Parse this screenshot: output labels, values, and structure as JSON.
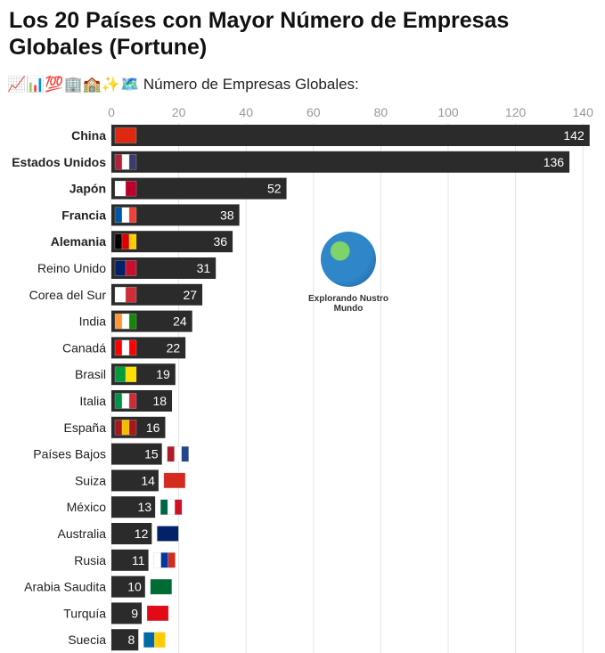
{
  "chart_data": {
    "type": "bar",
    "orientation": "horizontal",
    "title": "Los 20 Países con Mayor Número de Empresas Globales (Fortune)",
    "subtitle": "📈📊💯🏢🏫✨🗺️ Número de Empresas Globales:",
    "xlim": [
      0,
      145
    ],
    "ticks": [
      0,
      20,
      40,
      60,
      80,
      100,
      120,
      140
    ],
    "grid": true,
    "bar_color": "#2b2b2b",
    "categories": [
      "China",
      "Estados Unidos",
      "Japón",
      "Francia",
      "Alemania",
      "Reino Unido",
      "Corea del Sur",
      "India",
      "Canadá",
      "Brasil",
      "Italia",
      "España",
      "Países Bajos",
      "Suiza",
      "México",
      "Australia",
      "Rusia",
      "Arabia Saudita",
      "Turquía",
      "Suecia"
    ],
    "values": [
      142,
      136,
      52,
      38,
      36,
      31,
      27,
      24,
      22,
      19,
      18,
      16,
      15,
      14,
      13,
      12,
      11,
      10,
      9,
      8
    ],
    "bold": [
      true,
      true,
      true,
      true,
      true,
      false,
      false,
      false,
      false,
      false,
      false,
      false,
      false,
      false,
      false,
      false,
      false,
      false,
      false,
      false
    ],
    "flags": [
      [
        "#de2910"
      ],
      [
        "#b22234",
        "#fff",
        "#3c3b6e"
      ],
      [
        "#fff",
        "#bc002d"
      ],
      [
        "#0055a4",
        "#fff",
        "#ef4135"
      ],
      [
        "#000",
        "#dd0000",
        "#ffce00"
      ],
      [
        "#012169",
        "#c8102e"
      ],
      [
        "#fff",
        "#cd2e3a"
      ],
      [
        "#ff9933",
        "#fff",
        "#138808"
      ],
      [
        "#ff0000",
        "#fff",
        "#ff0000"
      ],
      [
        "#009c3b",
        "#ffdf00"
      ],
      [
        "#009246",
        "#fff",
        "#ce2b37"
      ],
      [
        "#aa151b",
        "#f1bf00",
        "#aa151b"
      ],
      [
        "#ae1c28",
        "#fff",
        "#21468b"
      ],
      [
        "#d52b1e"
      ],
      [
        "#006847",
        "#fff",
        "#ce1126"
      ],
      [
        "#012169"
      ],
      [
        "#fff",
        "#0039a6",
        "#d52b1e"
      ],
      [
        "#006c35"
      ],
      [
        "#e30a17"
      ],
      [
        "#006aa7",
        "#fecc00"
      ]
    ]
  },
  "logo": {
    "text": "Explorando Nustro Mundo"
  }
}
